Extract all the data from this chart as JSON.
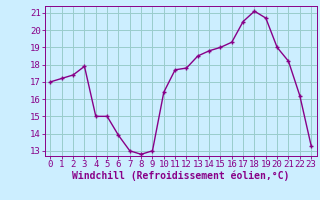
{
  "x": [
    0,
    1,
    2,
    3,
    4,
    5,
    6,
    7,
    8,
    9,
    10,
    11,
    12,
    13,
    14,
    15,
    16,
    17,
    18,
    19,
    20,
    21,
    22,
    23
  ],
  "y": [
    17.0,
    17.2,
    17.4,
    17.9,
    15.0,
    15.0,
    13.9,
    13.0,
    12.8,
    13.0,
    16.4,
    17.7,
    17.8,
    18.5,
    18.8,
    19.0,
    19.3,
    20.5,
    21.1,
    20.7,
    19.0,
    18.2,
    16.2,
    13.3
  ],
  "ylim_min": 12.7,
  "ylim_max": 21.4,
  "yticks": [
    13,
    14,
    15,
    16,
    17,
    18,
    19,
    20,
    21
  ],
  "xlim_min": -0.5,
  "xlim_max": 23.5,
  "xticks": [
    0,
    1,
    2,
    3,
    4,
    5,
    6,
    7,
    8,
    9,
    10,
    11,
    12,
    13,
    14,
    15,
    16,
    17,
    18,
    19,
    20,
    21,
    22,
    23
  ],
  "line_color": "#880088",
  "marker": "+",
  "markersize": 3.5,
  "linewidth": 1.0,
  "bg_color": "#cceeff",
  "grid_color": "#99cccc",
  "xlabel": "Windchill (Refroidissement éolien,°C)",
  "xlabel_color": "#880088",
  "xlabel_fontsize": 7.0,
  "tick_color": "#880088",
  "tick_fontsize": 6.5,
  "spine_color": "#880088",
  "fig_width": 3.2,
  "fig_height": 2.0,
  "fig_dpi": 100
}
